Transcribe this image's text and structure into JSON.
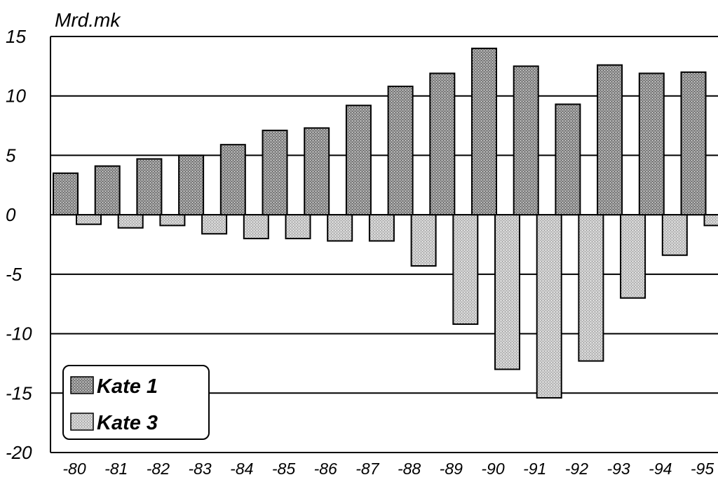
{
  "chart_data": {
    "type": "bar",
    "title": "",
    "ylabel": "Mrd.mk",
    "xlabel": "",
    "categories": [
      "-80",
      "-81",
      "-82",
      "-83",
      "-84",
      "-85",
      "-86",
      "-87",
      "-88",
      "-89",
      "-90",
      "-91",
      "-92",
      "-93",
      "-94",
      "-95"
    ],
    "series": [
      {
        "name": "Kate 1",
        "values": [
          3.5,
          4.1,
          4.7,
          5.0,
          5.9,
          7.1,
          7.3,
          9.2,
          10.8,
          11.9,
          14.0,
          12.5,
          9.3,
          12.6,
          11.9,
          12.0
        ]
      },
      {
        "name": "Kate 3",
        "values": [
          -0.8,
          -1.1,
          -0.9,
          -1.6,
          -2.0,
          -2.0,
          -2.2,
          -2.2,
          -4.3,
          -9.2,
          -13.0,
          -15.4,
          -12.3,
          -7.0,
          -3.4,
          -0.9
        ]
      }
    ],
    "ylim": [
      -20,
      15
    ],
    "yticks": [
      "15",
      "10",
      "5",
      "0",
      "-5",
      "-10",
      "-15",
      "-20"
    ],
    "grid": true,
    "legend_position": "bottom-left",
    "colors": {
      "kate1": "#8f8f8f",
      "kate3": "#c8c8c8",
      "stroke": "#000000",
      "background": "#ffffff"
    }
  }
}
